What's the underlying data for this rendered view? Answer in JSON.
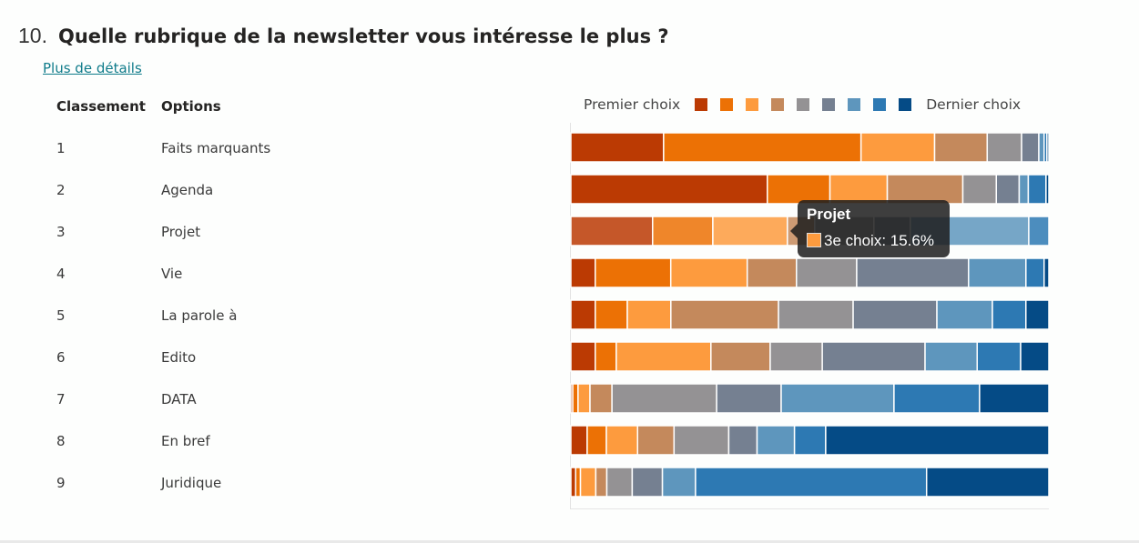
{
  "question": {
    "number": "10.",
    "title": "Quelle rubrique de la newsletter vous intéresse le plus ?",
    "details_link": "Plus de détails"
  },
  "table": {
    "headers": {
      "rank": "Classement",
      "options": "Options"
    },
    "rows": [
      {
        "rank": "1",
        "option": "Faits marquants"
      },
      {
        "rank": "2",
        "option": "Agenda"
      },
      {
        "rank": "3",
        "option": "Projet"
      },
      {
        "rank": "4",
        "option": "Vie"
      },
      {
        "rank": "5",
        "option": "La parole à"
      },
      {
        "rank": "6",
        "option": "Edito"
      },
      {
        "rank": "7",
        "option": "DATA"
      },
      {
        "rank": "8",
        "option": "En bref"
      },
      {
        "rank": "9",
        "option": "Juridique"
      }
    ]
  },
  "legend": {
    "first_label": "Premier choix",
    "last_label": "Dernier choix",
    "colors": [
      "#bb3a03",
      "#ec7105",
      "#fd9b3e",
      "#c4895c",
      "#949294",
      "#758091",
      "#5e96bd",
      "#2d79b3",
      "#054b86"
    ]
  },
  "tooltip": {
    "title": "Projet",
    "text": "3e choix: 15.6%",
    "color": "#fd9b3e"
  },
  "chart_data": {
    "type": "bar",
    "orientation": "horizontal-stacked-100",
    "title": "",
    "xlabel": "",
    "ylabel": "",
    "xlim": [
      0,
      100
    ],
    "legend_position": "top",
    "categories": [
      "Faits marquants",
      "Agenda",
      "Projet",
      "Vie",
      "La parole à",
      "Edito",
      "DATA",
      "En bref",
      "Juridique"
    ],
    "series": [
      {
        "name": "1er choix",
        "values": [
          19.4,
          41.1,
          17.1,
          5.1,
          5.1,
          5.1,
          0.4,
          3.4,
          1.0
        ]
      },
      {
        "name": "2e choix",
        "values": [
          41.3,
          13.1,
          12.6,
          15.8,
          6.7,
          4.4,
          1.1,
          4.0,
          1.0
        ]
      },
      {
        "name": "3e choix",
        "values": [
          15.4,
          12.0,
          15.6,
          16.0,
          9.1,
          19.8,
          2.5,
          6.5,
          3.2
        ]
      },
      {
        "name": "4e choix",
        "values": [
          11.0,
          15.8,
          5.7,
          10.3,
          22.5,
          12.4,
          4.6,
          7.6,
          2.3
        ]
      },
      {
        "name": "5e choix",
        "values": [
          7.2,
          7.0,
          12.4,
          12.6,
          15.6,
          10.9,
          21.9,
          11.4,
          5.3
        ]
      },
      {
        "name": "6e choix",
        "values": [
          3.6,
          4.8,
          7.6,
          23.4,
          17.5,
          21.5,
          13.5,
          5.9,
          6.3
        ]
      },
      {
        "name": "7e choix",
        "values": [
          1.1,
          1.9,
          24.8,
          12.0,
          11.6,
          10.9,
          23.6,
          7.8,
          6.9
        ]
      },
      {
        "name": "8e choix",
        "values": [
          0.6,
          3.7,
          4.2,
          3.8,
          7.0,
          9.1,
          17.9,
          6.5,
          48.2
        ]
      },
      {
        "name": "9e choix",
        "values": [
          0.4,
          0.6,
          0.0,
          1.0,
          4.8,
          5.9,
          14.5,
          46.5,
          25.5
        ]
      }
    ],
    "highlighted": {
      "category": "Projet",
      "series": "3e choix",
      "value": 15.6
    }
  }
}
